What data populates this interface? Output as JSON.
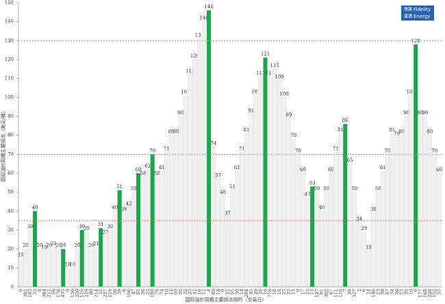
{
  "chart_data": {
    "type": "bar",
    "ylabel": "国际油价周期主要拐点（美元/桶）",
    "xlabel": "国际油价周期主要拐点用时（交易日）",
    "logo": {
      "cn1": "德晟",
      "cn2": "盛通",
      "en1": "Fidelity",
      "en2": "Energy"
    },
    "categories": [
      "0",
      "392",
      "183",
      "33",
      "8",
      "384",
      "222",
      "56",
      "176",
      "435",
      "9",
      "156",
      "220",
      "116",
      "229",
      "80",
      "214",
      "32",
      "227",
      "119",
      "50",
      "39",
      "8",
      "106",
      "47",
      "85",
      "36",
      "23",
      "100",
      "79",
      "74",
      "10",
      "12",
      "69",
      "95",
      "32",
      "25",
      "42",
      "16",
      "12",
      "4",
      "69",
      "18",
      "9",
      "22",
      "55",
      "30",
      "14",
      "204",
      "45",
      "29",
      "26",
      "16",
      "778",
      "18",
      "18",
      "25",
      "23",
      "13",
      "9",
      "17",
      "23",
      "13",
      "127",
      "91",
      "305",
      "67",
      "111",
      "116",
      "7",
      "29",
      "327",
      "2",
      "6",
      "24",
      "140",
      "23",
      "39",
      "87",
      "34",
      "30",
      "13",
      "20",
      "16",
      "6",
      "177",
      "168",
      "228",
      "152",
      "55"
    ],
    "values": [
      15,
      20,
      30,
      40,
      20,
      19,
      20,
      21,
      20,
      20,
      10,
      10,
      20,
      30,
      29,
      20,
      21,
      31,
      27,
      30,
      40,
      51,
      39,
      42,
      50,
      60,
      58,
      62,
      70,
      58,
      61,
      71,
      80,
      80,
      90,
      101,
      112,
      120,
      131,
      140,
      146,
      74,
      57,
      48,
      37,
      51,
      61,
      71,
      81,
      91,
      101,
      111,
      121,
      111,
      115,
      109,
      100,
      89,
      78,
      70,
      60,
      47,
      53,
      50,
      40,
      50,
      60,
      71,
      81,
      86,
      65,
      50,
      34,
      29,
      19,
      39,
      50,
      61,
      70,
      81,
      79,
      80,
      90,
      101,
      128,
      90,
      90,
      80,
      70,
      60
    ],
    "colors": [
      "#f0f0f0",
      "#f0f0f0",
      "#f0f0f0",
      "#1aa64a",
      "#f0f0f0",
      "#f0f0f0",
      "#f0f0f0",
      "#f0f0f0",
      "#f0f0f0",
      "#1aa64a",
      "#f0f0f0",
      "#f0f0f0",
      "#f0f0f0",
      "#1aa64a",
      "#f0f0f0",
      "#f0f0f0",
      "#f0f0f0",
      "#1aa64a",
      "#f0f0f0",
      "#f0f0f0",
      "#f0f0f0",
      "#1aa64a",
      "#f0f0f0",
      "#f0f0f0",
      "#f0f0f0",
      "#1aa64a",
      "#f0f0f0",
      "#f0f0f0",
      "#1aa64a",
      "#f0f0f0",
      "#f0f0f0",
      "#f0f0f0",
      "#f0f0f0",
      "#f0f0f0",
      "#f0f0f0",
      "#f0f0f0",
      "#f0f0f0",
      "#f0f0f0",
      "#f0f0f0",
      "#f0f0f0",
      "#1aa64a",
      "#f0f0f0",
      "#f0f0f0",
      "#f0f0f0",
      "#f0f0f0",
      "#f0f0f0",
      "#f0f0f0",
      "#f0f0f0",
      "#f0f0f0",
      "#f0f0f0",
      "#f0f0f0",
      "#f0f0f0",
      "#1aa64a",
      "#f0f0f0",
      "#f0f0f0",
      "#f0f0f0",
      "#f0f0f0",
      "#f0f0f0",
      "#f0f0f0",
      "#f0f0f0",
      "#f0f0f0",
      "#f0f0f0",
      "#1aa64a",
      "#f0f0f0",
      "#f0f0f0",
      "#f0f0f0",
      "#f0f0f0",
      "#f0f0f0",
      "#f0f0f0",
      "#1aa64a",
      "#f0f0f0",
      "#f0f0f0",
      "#f0f0f0",
      "#f0f0f0",
      "#f0f0f0",
      "#f0f0f0",
      "#f0f0f0",
      "#f0f0f0",
      "#f0f0f0",
      "#f0f0f0",
      "#f0f0f0",
      "#f0f0f0",
      "#f0f0f0",
      "#f0f0f0",
      "#1aa64a",
      "#f0f0f0",
      "#f0f0f0",
      "#f0f0f0",
      "#f0f0f0",
      "#f0f0f0"
    ],
    "reference_lines": [
      {
        "value": 130,
        "color": "#e0c000"
      },
      {
        "value": 70,
        "color": "#8a9aaa"
      },
      {
        "value": 35,
        "color": "#f07020"
      }
    ],
    "ylim": [
      0,
      150
    ],
    "yticks": [
      0,
      10,
      20,
      30,
      40,
      50,
      60,
      70,
      80,
      90,
      100,
      110,
      120,
      130,
      140,
      150
    ]
  }
}
